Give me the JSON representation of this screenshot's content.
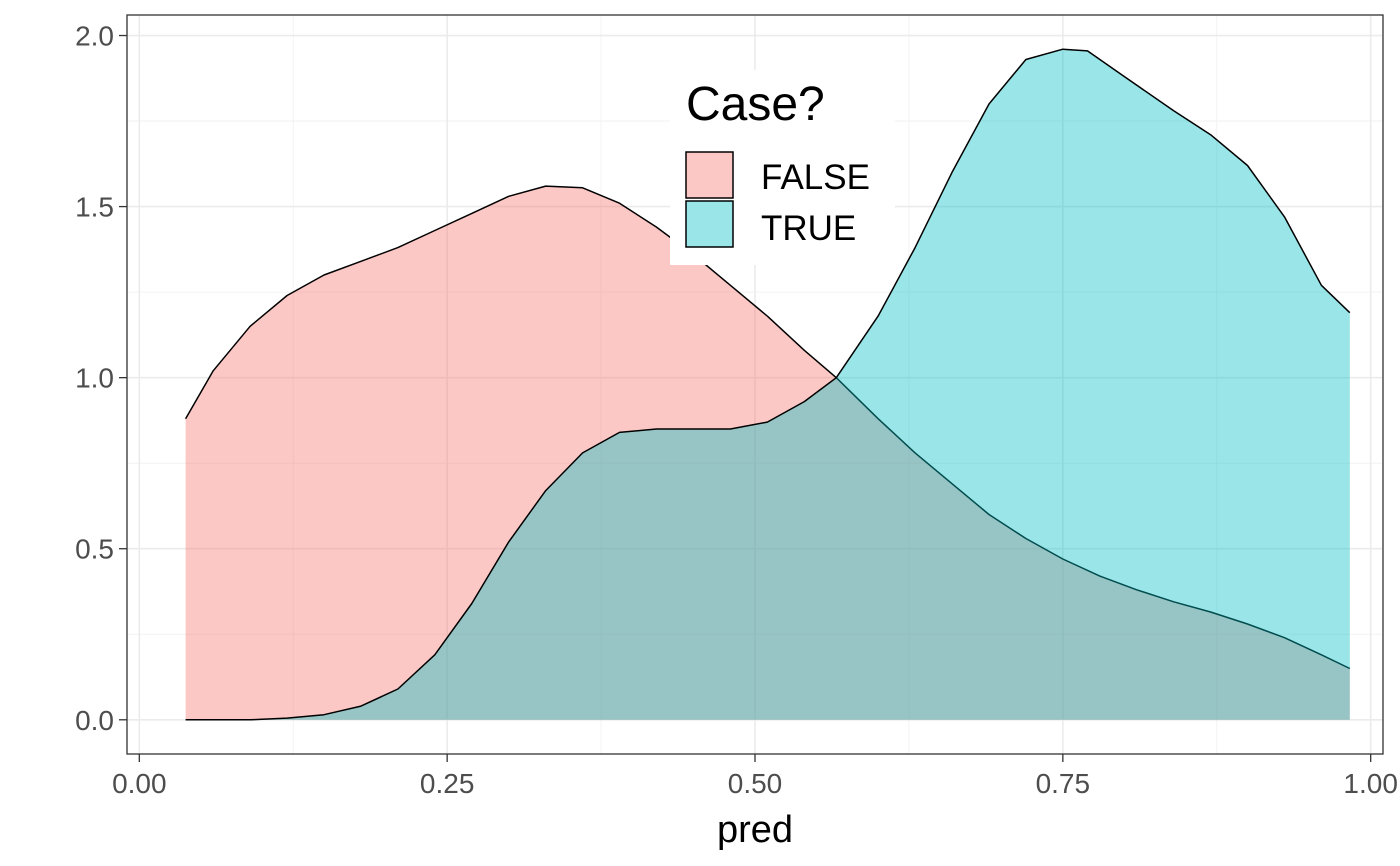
{
  "chart_data": {
    "type": "area",
    "title": "",
    "xlabel": "pred",
    "ylabel": "",
    "xlim": [
      -0.01,
      1.01
    ],
    "ylim": [
      -0.1,
      2.06
    ],
    "x_ticks": [
      "0.00",
      "0.25",
      "0.50",
      "0.75",
      "1.00"
    ],
    "y_ticks": [
      "0.0",
      "0.5",
      "1.0",
      "1.5",
      "2.0"
    ],
    "grid": true,
    "legend": {
      "title": "Case?",
      "placement": "top-center",
      "entries": [
        "FALSE",
        "TRUE"
      ]
    },
    "series": [
      {
        "name": "FALSE",
        "color": "#F8766D",
        "x": [
          0.0376,
          0.06,
          0.09,
          0.12,
          0.15,
          0.18,
          0.21,
          0.24,
          0.27,
          0.3,
          0.33,
          0.36,
          0.39,
          0.42,
          0.45,
          0.48,
          0.51,
          0.54,
          0.566,
          0.6,
          0.63,
          0.66,
          0.69,
          0.72,
          0.75,
          0.78,
          0.81,
          0.84,
          0.87,
          0.9,
          0.93,
          0.96,
          0.983
        ],
        "y": [
          0.88,
          1.02,
          1.15,
          1.24,
          1.3,
          1.34,
          1.38,
          1.43,
          1.48,
          1.53,
          1.56,
          1.555,
          1.51,
          1.44,
          1.36,
          1.27,
          1.18,
          1.08,
          1.0,
          0.88,
          0.78,
          0.69,
          0.6,
          0.53,
          0.47,
          0.42,
          0.38,
          0.345,
          0.315,
          0.28,
          0.24,
          0.19,
          0.15
        ]
      },
      {
        "name": "TRUE",
        "color": "#00BFC4",
        "x": [
          0.0376,
          0.06,
          0.09,
          0.12,
          0.15,
          0.18,
          0.21,
          0.24,
          0.27,
          0.3,
          0.33,
          0.36,
          0.39,
          0.42,
          0.45,
          0.48,
          0.51,
          0.54,
          0.566,
          0.6,
          0.63,
          0.66,
          0.69,
          0.72,
          0.75,
          0.77,
          0.8,
          0.84,
          0.87,
          0.9,
          0.93,
          0.96,
          0.983
        ],
        "y": [
          0.0,
          0.0,
          0.0,
          0.005,
          0.015,
          0.04,
          0.09,
          0.19,
          0.34,
          0.52,
          0.67,
          0.78,
          0.84,
          0.85,
          0.85,
          0.85,
          0.87,
          0.93,
          1.0,
          1.18,
          1.38,
          1.6,
          1.8,
          1.93,
          1.96,
          1.955,
          1.88,
          1.78,
          1.71,
          1.62,
          1.47,
          1.27,
          1.19
        ]
      }
    ]
  }
}
